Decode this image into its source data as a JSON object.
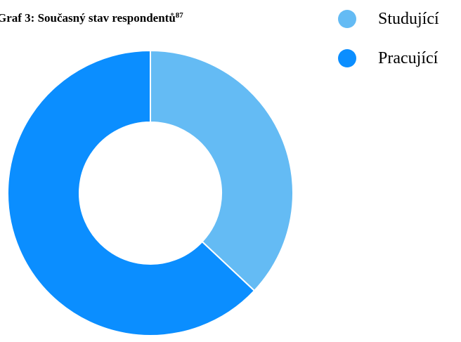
{
  "chart_data": {
    "type": "pie",
    "variant": "donut",
    "title": "Graf 3: Současný stav respondentů",
    "title_footnote": "87",
    "categories": [
      "Studující",
      "Pracující"
    ],
    "values": [
      37,
      63
    ],
    "colors": [
      "#64bbf4",
      "#0b8eff"
    ],
    "start_angle_deg": 0,
    "direction": "clockwise",
    "legend_position": "top-right",
    "slice_border_color": "#ffffff"
  }
}
